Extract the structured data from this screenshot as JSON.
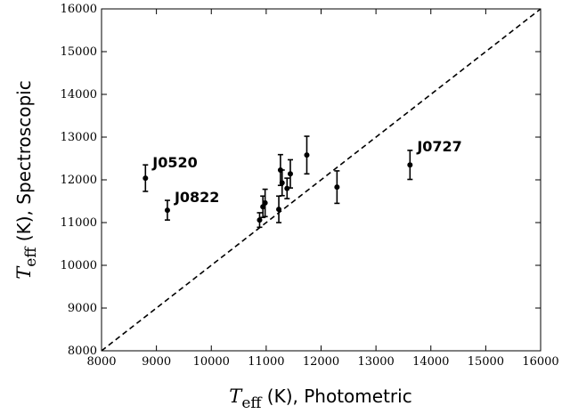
{
  "chart_data": {
    "type": "scatter",
    "xlabel": {
      "symbol": "T",
      "subscript": "eff",
      "text": " (K), Photometric"
    },
    "ylabel": {
      "symbol": "T",
      "subscript": "eff",
      "text": " (K), Spectroscopic"
    },
    "xlim": [
      8000,
      16000
    ],
    "ylim": [
      8000,
      16000
    ],
    "xticks": [
      8000,
      9000,
      10000,
      11000,
      12000,
      13000,
      14000,
      15000,
      16000
    ],
    "yticks": [
      8000,
      9000,
      10000,
      11000,
      12000,
      13000,
      14000,
      15000,
      16000
    ],
    "grid": false,
    "reference_line": {
      "style": "dashed",
      "from": [
        8000,
        8000
      ],
      "to": [
        16000,
        16000
      ]
    },
    "points": [
      {
        "x": 8800,
        "y": 12040,
        "err": 310,
        "label": "J0520"
      },
      {
        "x": 9200,
        "y": 11290,
        "err": 230,
        "label": "J0822"
      },
      {
        "x": 10880,
        "y": 11060,
        "err": 170,
        "label": ""
      },
      {
        "x": 10940,
        "y": 11370,
        "err": 250,
        "label": ""
      },
      {
        "x": 10980,
        "y": 11460,
        "err": 320,
        "label": ""
      },
      {
        "x": 11230,
        "y": 11310,
        "err": 310,
        "label": ""
      },
      {
        "x": 11260,
        "y": 12230,
        "err": 360,
        "label": ""
      },
      {
        "x": 11290,
        "y": 11930,
        "err": 300,
        "label": ""
      },
      {
        "x": 11380,
        "y": 11800,
        "err": 240,
        "label": ""
      },
      {
        "x": 11440,
        "y": 12140,
        "err": 330,
        "label": ""
      },
      {
        "x": 11740,
        "y": 12580,
        "err": 440,
        "label": ""
      },
      {
        "x": 12290,
        "y": 11830,
        "err": 380,
        "label": ""
      },
      {
        "x": 13620,
        "y": 12350,
        "err": 340,
        "label": "J0727"
      }
    ]
  }
}
